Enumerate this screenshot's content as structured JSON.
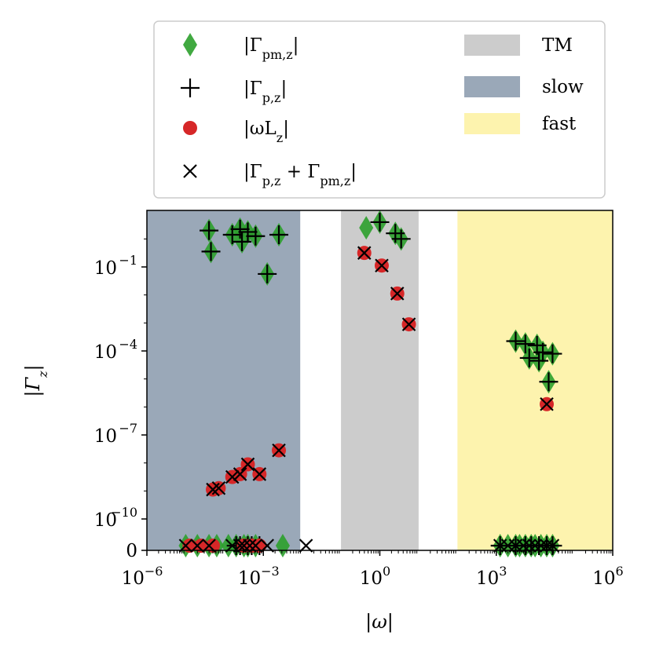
{
  "chart_data": {
    "type": "scatter",
    "xscale": "log",
    "yscale": "symlog",
    "xlim_exp": [
      -6,
      6
    ],
    "ylim_exp_top": 1.0,
    "linthresh_exp": -11,
    "xlabel": "|ω|",
    "ylabel": "|Γ_z|",
    "x_ticks": [
      {
        "exp": -6,
        "label_base": "10",
        "label_exp": "−6"
      },
      {
        "exp": -3,
        "label_base": "10",
        "label_exp": "−3"
      },
      {
        "exp": 0,
        "label_base": "10",
        "label_exp": "0"
      },
      {
        "exp": 3,
        "label_base": "10",
        "label_exp": "3"
      },
      {
        "exp": 6,
        "label_base": "10",
        "label_exp": "6"
      }
    ],
    "y_ticks": [
      {
        "exp": -1,
        "label_base": "10",
        "label_exp": "−1"
      },
      {
        "exp": -4,
        "label_base": "10",
        "label_exp": "−4"
      },
      {
        "exp": -7,
        "label_base": "10",
        "label_exp": "−7"
      },
      {
        "exp": -10,
        "label_base": "10",
        "label_exp": "−10"
      }
    ],
    "y_zero_label": "0",
    "regions": [
      {
        "name": "slow",
        "x_from_exp": -6,
        "x_to_exp": -2.05,
        "color": "#9aa8b8"
      },
      {
        "name": "TM",
        "x_from_exp": -1,
        "x_to_exp": 1,
        "color": "#cccccc"
      },
      {
        "name": "fast",
        "x_from_exp": 2,
        "x_to_exp": 6,
        "color": "#fdf3ae"
      }
    ],
    "legend": {
      "placement": "top",
      "series": [
        {
          "label_main": "|Γ",
          "label_sub": "pm,z",
          "label_tail": "|",
          "marker": "diamond",
          "color": "#2ca02c"
        },
        {
          "label_main": "|Γ",
          "label_sub": "p,z",
          "label_tail": "|",
          "marker": "plus",
          "color": "#000000"
        },
        {
          "label_main": "|ωL",
          "label_sub": "z",
          "label_tail": "|",
          "marker": "circle",
          "color": "#d62728"
        },
        {
          "label_main": "|Γ",
          "label_sub": "p,z",
          "label_tail": " + Γ",
          "label_sub2": "pm,z",
          "label_tail2": "|",
          "marker": "x",
          "color": "#000000"
        }
      ],
      "regions": [
        {
          "label": "TM",
          "color": "#cccccc"
        },
        {
          "label": "slow",
          "color": "#9aa8b8"
        },
        {
          "label": "fast",
          "color": "#fdf3ae"
        }
      ]
    },
    "series": [
      {
        "name": "|Γ_pm,z|",
        "marker": "diamond",
        "color": "#2ca02c",
        "points_log": [
          [
            -4.4,
            0.3
          ],
          [
            -4.35,
            -0.45
          ],
          [
            -3.8,
            0.15
          ],
          [
            -3.6,
            0.35
          ],
          [
            -3.55,
            -0.1
          ],
          [
            -3.4,
            0.25
          ],
          [
            -3.2,
            0.1
          ],
          [
            -2.9,
            -1.25
          ],
          [
            -2.6,
            0.15
          ],
          [
            0.0,
            0.6
          ],
          [
            0.4,
            0.2
          ],
          [
            0.55,
            0.0
          ],
          [
            -0.35,
            0.4
          ],
          [
            3.5,
            -3.65
          ],
          [
            3.75,
            -3.75
          ],
          [
            3.85,
            -4.25
          ],
          [
            4.05,
            -3.8
          ],
          [
            4.1,
            -4.35
          ],
          [
            4.2,
            -4.05
          ],
          [
            4.45,
            -4.1
          ],
          [
            4.35,
            -5.1
          ]
        ],
        "points_zero_x": [
          -5.0,
          -4.7,
          -4.4,
          -4.2,
          -3.9,
          -3.7,
          -3.5,
          -3.4,
          -3.2,
          -2.5,
          3.1,
          3.3,
          3.5,
          3.6,
          3.75,
          3.9,
          4.0,
          4.15,
          4.3,
          4.45
        ]
      },
      {
        "name": "|Γ_p,z|",
        "marker": "plus",
        "color": "#000000",
        "points_log": [
          [
            -4.4,
            0.3
          ],
          [
            -4.35,
            -0.45
          ],
          [
            -3.8,
            0.15
          ],
          [
            -3.6,
            0.35
          ],
          [
            -3.55,
            -0.1
          ],
          [
            -3.4,
            0.25
          ],
          [
            -3.2,
            0.1
          ],
          [
            -2.9,
            -1.25
          ],
          [
            -2.6,
            0.15
          ],
          [
            0.0,
            0.6
          ],
          [
            0.4,
            0.2
          ],
          [
            0.55,
            0.0
          ],
          [
            3.5,
            -3.65
          ],
          [
            3.75,
            -3.75
          ],
          [
            3.85,
            -4.25
          ],
          [
            4.05,
            -3.8
          ],
          [
            4.1,
            -4.35
          ],
          [
            4.2,
            -4.05
          ],
          [
            4.45,
            -4.1
          ],
          [
            4.35,
            -5.1
          ]
        ],
        "points_zero_x": [
          -3.7,
          -3.6,
          -3.4,
          -3.3,
          -3.1,
          3.1,
          3.5,
          3.75,
          3.9,
          4.1,
          4.3,
          4.45
        ]
      },
      {
        "name": "|ωL_z|",
        "marker": "circle",
        "color": "#d62728",
        "points_log": [
          [
            -4.3,
            -8.95
          ],
          [
            -4.15,
            -8.9
          ],
          [
            -3.8,
            -8.5
          ],
          [
            -3.6,
            -8.4
          ],
          [
            -3.4,
            -8.05
          ],
          [
            -3.1,
            -8.4
          ],
          [
            -2.6,
            -7.55
          ],
          [
            -0.4,
            -0.5
          ],
          [
            0.05,
            -0.95
          ],
          [
            0.45,
            -1.95
          ],
          [
            0.75,
            -3.05
          ],
          [
            4.3,
            -5.9
          ]
        ],
        "points_zero_x": [
          -4.9,
          -4.6,
          -4.3,
          -3.5,
          -3.3,
          -3.1
        ]
      },
      {
        "name": "|Γ_p,z + Γ_pm,z|",
        "marker": "x",
        "color": "#000000",
        "points_log": [
          [
            -4.3,
            -8.95
          ],
          [
            -4.15,
            -8.9
          ],
          [
            -3.8,
            -8.5
          ],
          [
            -3.6,
            -8.4
          ],
          [
            -3.4,
            -8.05
          ],
          [
            -3.1,
            -8.4
          ],
          [
            -2.6,
            -7.55
          ],
          [
            -0.4,
            -0.5
          ],
          [
            0.05,
            -0.95
          ],
          [
            0.45,
            -1.95
          ],
          [
            0.75,
            -3.05
          ],
          [
            4.3,
            -5.9
          ]
        ],
        "points_zero_x": [
          -5.0,
          -4.7,
          -4.4,
          -3.8,
          -3.6,
          -3.5,
          -3.35,
          -3.2,
          -2.9,
          -1.9,
          3.1,
          3.3,
          3.5,
          3.7,
          3.85,
          4.0,
          4.15,
          4.3,
          4.45
        ]
      }
    ]
  }
}
